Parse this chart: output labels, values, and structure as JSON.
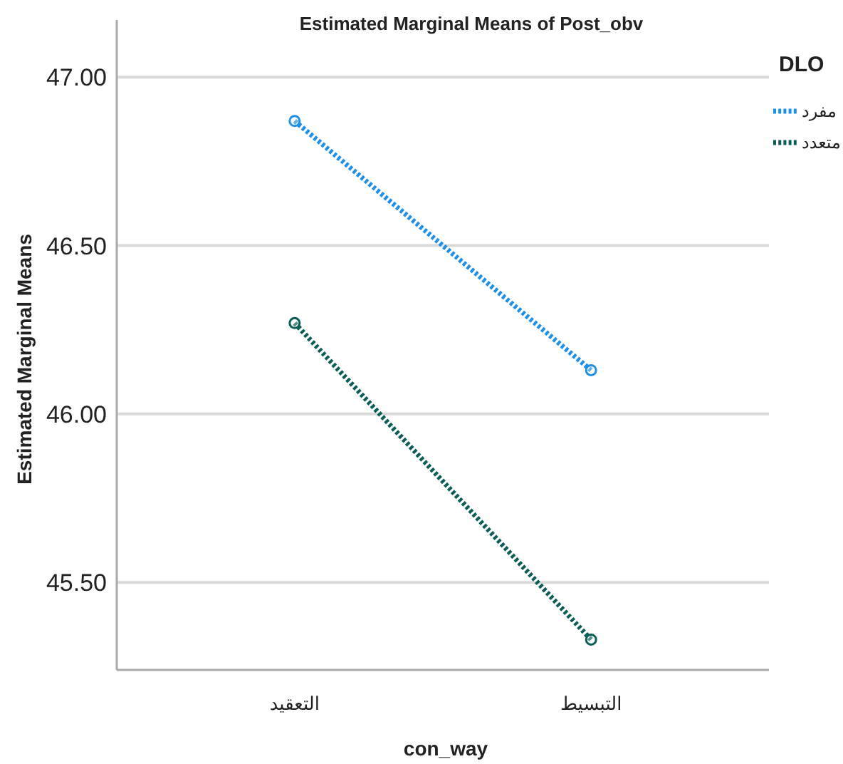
{
  "chart_data": {
    "type": "line",
    "title": "Estimated Marginal Means of Post_obv",
    "xlabel": "con_way",
    "ylabel": "Estimated Marginal Means",
    "legend_title": "DLO",
    "categories": [
      "التعقيد",
      "التبسيط"
    ],
    "series": [
      {
        "name": "مفرد",
        "color": "#1e90e8",
        "values": [
          46.87,
          46.13
        ]
      },
      {
        "name": "متعدد",
        "color": "#0b5e57",
        "values": [
          46.27,
          45.33
        ]
      }
    ],
    "ylim": [
      45.24,
      47.17
    ],
    "yticks": [
      {
        "value": 45.5,
        "label": "45.50"
      },
      {
        "value": 46,
        "label": "46.00"
      },
      {
        "value": 46.5,
        "label": "46.50"
      },
      {
        "value": 47,
        "label": "47.00"
      }
    ],
    "grid": "y",
    "legend": "top right",
    "marker": "circle",
    "line_style": "dotted"
  }
}
